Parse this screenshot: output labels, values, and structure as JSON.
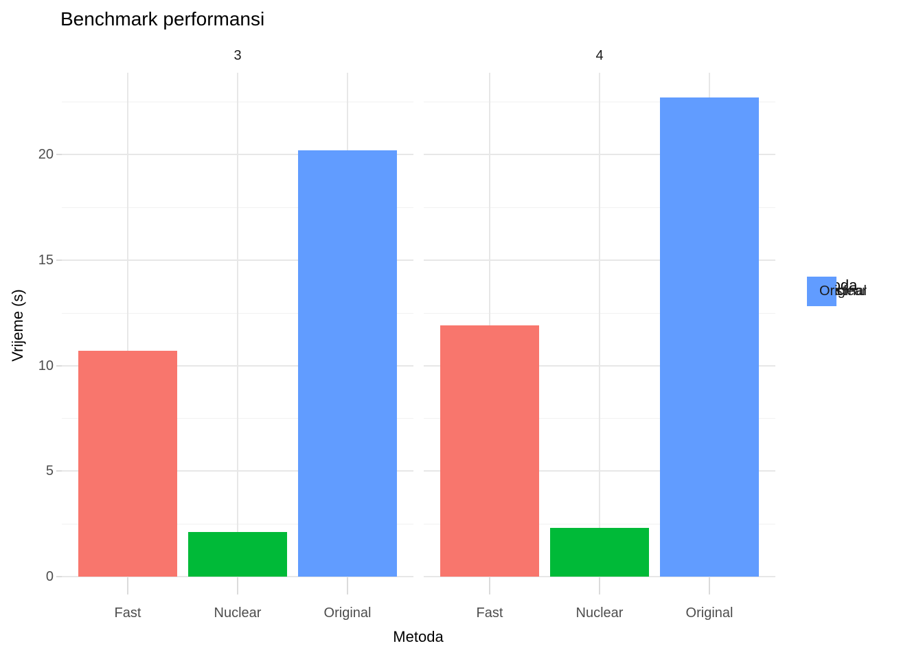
{
  "title": "Benchmark performansi",
  "axes": {
    "x_title": "Metoda",
    "y_title": "Vrijeme (s)",
    "y_tick_labels": [
      "0",
      "5",
      "10",
      "15",
      "20"
    ],
    "x_tick_labels": [
      "Fast",
      "Nuclear",
      "Original"
    ]
  },
  "facet_labels": [
    "3",
    "4"
  ],
  "legend": {
    "title": "metoda",
    "entries": [
      {
        "label": "Fast",
        "color": "#F8766D"
      },
      {
        "label": "Nuclear",
        "color": "#00BA38"
      },
      {
        "label": "Original",
        "color": "#619CFF"
      }
    ]
  },
  "colors": {
    "background": "#FFFFFF",
    "grid_major": "#E7E7E7",
    "grid_minor": "#F1F1F1",
    "axis_tick": "#DBDBDB",
    "tick_label_text": "#4D4D4D",
    "strip_text": "#1A1A1A"
  },
  "chart_data": {
    "type": "bar",
    "title": "Benchmark performansi",
    "xlabel": "Metoda",
    "ylabel": "Vrijeme (s)",
    "categories": [
      "Fast",
      "Nuclear",
      "Original"
    ],
    "facets": [
      {
        "label": "3",
        "values": {
          "Fast": 10.7,
          "Nuclear": 2.1,
          "Original": 20.2
        }
      },
      {
        "label": "4",
        "values": {
          "Fast": 11.9,
          "Nuclear": 2.3,
          "Original": 22.7
        }
      }
    ],
    "series_colors": {
      "Fast": "#F8766D",
      "Nuclear": "#00BA38",
      "Original": "#619CFF"
    },
    "y_ticks": [
      0,
      5,
      10,
      15,
      20
    ],
    "y_minor_gridlines": [
      2.5,
      7.5,
      12.5,
      17.5,
      22.5
    ],
    "ylim": [
      0,
      23.9
    ],
    "grid": true,
    "legend": {
      "title": "metoda",
      "position": "right"
    }
  }
}
